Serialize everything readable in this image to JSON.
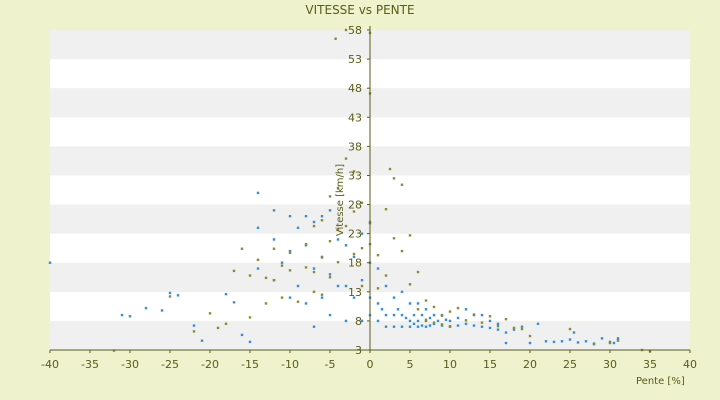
{
  "chart_data": {
    "type": "scatter",
    "title": "VITESSE vs PENTE",
    "xlabel": "Pente [%]",
    "ylabel": "Vitesse [km/h]",
    "xlim": [
      -40,
      40
    ],
    "ylim": [
      3,
      58
    ],
    "x_ticks": [
      -40,
      -35,
      -30,
      -25,
      -20,
      -15,
      -10,
      -5,
      0,
      5,
      10,
      15,
      20,
      25,
      30,
      35,
      40
    ],
    "y_ticks": [
      3,
      8,
      13,
      18,
      23,
      28,
      33,
      38,
      43,
      48,
      53,
      58
    ],
    "grid": "alternating horizontal bands",
    "legend": "none",
    "colors": {
      "band_gray": "#f0f0f0",
      "band_white": "#ffffff",
      "axis": "#5b5b16",
      "text": "#5b5b16",
      "series_blue": "#2f8fd8",
      "series_olive": "#8b8b2b"
    },
    "series": [
      {
        "color": "#2f8fd8",
        "points": [
          [
            -40,
            18
          ],
          [
            -31,
            9
          ],
          [
            -30,
            8.8
          ],
          [
            -28,
            10.2
          ],
          [
            -26,
            9.8
          ],
          [
            -25,
            12.8
          ],
          [
            -24,
            12.4
          ],
          [
            -22,
            7.2
          ],
          [
            -21,
            4.6
          ],
          [
            -18,
            12.6
          ],
          [
            -17,
            11.2
          ],
          [
            -16,
            5.6
          ],
          [
            -15,
            4.4
          ],
          [
            -14,
            30
          ],
          [
            -14,
            24
          ],
          [
            -14,
            17
          ],
          [
            -12,
            27
          ],
          [
            -12,
            22
          ],
          [
            -12,
            15
          ],
          [
            -11,
            18
          ],
          [
            -10,
            26
          ],
          [
            -10,
            20
          ],
          [
            -10,
            12
          ],
          [
            -9,
            24
          ],
          [
            -9,
            14
          ],
          [
            -8,
            26
          ],
          [
            -8,
            21
          ],
          [
            -8,
            11
          ],
          [
            -7,
            25
          ],
          [
            -7,
            17
          ],
          [
            -7,
            7
          ],
          [
            -6,
            26
          ],
          [
            -6,
            19
          ],
          [
            -6,
            12
          ],
          [
            -5,
            27
          ],
          [
            -5,
            16
          ],
          [
            -5,
            9
          ],
          [
            -4,
            22
          ],
          [
            -4,
            14
          ],
          [
            -3,
            21
          ],
          [
            -3,
            14
          ],
          [
            -3,
            8
          ],
          [
            -2,
            19
          ],
          [
            -2,
            12
          ],
          [
            -1,
            23
          ],
          [
            -1,
            15
          ],
          [
            -1,
            8
          ],
          [
            0,
            25
          ],
          [
            0,
            18
          ],
          [
            0,
            12
          ],
          [
            0,
            9
          ],
          [
            1,
            17
          ],
          [
            1,
            11
          ],
          [
            1,
            8
          ],
          [
            1.5,
            10
          ],
          [
            2,
            14
          ],
          [
            2,
            9
          ],
          [
            2,
            7
          ],
          [
            3,
            12
          ],
          [
            3,
            9
          ],
          [
            3,
            7
          ],
          [
            3.5,
            10
          ],
          [
            4,
            13
          ],
          [
            4,
            9
          ],
          [
            4,
            7
          ],
          [
            4.5,
            8.5
          ],
          [
            5,
            11
          ],
          [
            5,
            8
          ],
          [
            5,
            7
          ],
          [
            5.5,
            9
          ],
          [
            5.5,
            7.5
          ],
          [
            6,
            11
          ],
          [
            6,
            8
          ],
          [
            6,
            7
          ],
          [
            6.5,
            9
          ],
          [
            6.5,
            7.2
          ],
          [
            7,
            10
          ],
          [
            7,
            8
          ],
          [
            7,
            7
          ],
          [
            7.5,
            8.5
          ],
          [
            7.5,
            7.2
          ],
          [
            8,
            9
          ],
          [
            8,
            7.5
          ],
          [
            8.5,
            8
          ],
          [
            9,
            9
          ],
          [
            9,
            7.2
          ],
          [
            9.5,
            8.2
          ],
          [
            10,
            8
          ],
          [
            10,
            7
          ],
          [
            11,
            8.5
          ],
          [
            11,
            7.2
          ],
          [
            12,
            10
          ],
          [
            12,
            7.5
          ],
          [
            13,
            9
          ],
          [
            13,
            7.2
          ],
          [
            14,
            9
          ],
          [
            14,
            7
          ],
          [
            15,
            8
          ],
          [
            15,
            6.8
          ],
          [
            16,
            7.5
          ],
          [
            16,
            6.5
          ],
          [
            17,
            6
          ],
          [
            17,
            4.2
          ],
          [
            18,
            6.5
          ],
          [
            19,
            7
          ],
          [
            20,
            4.2
          ],
          [
            21,
            7.5
          ],
          [
            22,
            4.5
          ],
          [
            23,
            4.4
          ],
          [
            24,
            4.5
          ],
          [
            25,
            4.8
          ],
          [
            25.5,
            6
          ],
          [
            26,
            4.3
          ],
          [
            27,
            4.5
          ],
          [
            28,
            4.1
          ],
          [
            29,
            5
          ],
          [
            30,
            4.4
          ],
          [
            30.5,
            4.2
          ],
          [
            31,
            5
          ]
        ]
      },
      {
        "color": "#8b8b2b",
        "points": [
          [
            -32,
            2.9
          ],
          [
            -25,
            12.2
          ],
          [
            -22,
            6.2
          ],
          [
            -20,
            9.3
          ],
          [
            -19,
            6.8
          ],
          [
            -18,
            7.5
          ],
          [
            -17,
            16.6
          ],
          [
            -16,
            20.4
          ],
          [
            -15,
            15.8
          ],
          [
            -15,
            8.6
          ],
          [
            -14,
            18.5
          ],
          [
            -13,
            15.4
          ],
          [
            -13,
            11
          ],
          [
            -12,
            20.4
          ],
          [
            -12,
            15
          ],
          [
            -11,
            17.5
          ],
          [
            -11,
            12
          ],
          [
            -10,
            19.7
          ],
          [
            -10,
            16.7
          ],
          [
            -9,
            11.3
          ],
          [
            -8,
            21.2
          ],
          [
            -8,
            17.2
          ],
          [
            -7,
            24.3
          ],
          [
            -7,
            16.4
          ],
          [
            -7,
            13
          ],
          [
            -6,
            25.3
          ],
          [
            -6,
            18.9
          ],
          [
            -6,
            12.5
          ],
          [
            -5,
            29.4
          ],
          [
            -5,
            21.7
          ],
          [
            -5,
            15.5
          ],
          [
            -4,
            30.8
          ],
          [
            -4,
            23.7
          ],
          [
            -4,
            18.1
          ],
          [
            -3,
            35.9
          ],
          [
            -3,
            24.3
          ],
          [
            -2,
            33.7
          ],
          [
            -2,
            26.8
          ],
          [
            -2,
            19.5
          ],
          [
            -1,
            28.3
          ],
          [
            -1,
            20.5
          ],
          [
            -1,
            14
          ],
          [
            0,
            57.5
          ],
          [
            0,
            47.1
          ],
          [
            0,
            24.8
          ],
          [
            0,
            21.2
          ],
          [
            1,
            19.3
          ],
          [
            1,
            13.6
          ],
          [
            2,
            27.2
          ],
          [
            2,
            15.8
          ],
          [
            2.5,
            34.1
          ],
          [
            3,
            32.5
          ],
          [
            3,
            22.2
          ],
          [
            4,
            31.4
          ],
          [
            4,
            20
          ],
          [
            5,
            22.7
          ],
          [
            5,
            14.3
          ],
          [
            6,
            16.4
          ],
          [
            6,
            10
          ],
          [
            7,
            11.5
          ],
          [
            7,
            8.2
          ],
          [
            8,
            10.4
          ],
          [
            8,
            7.7
          ],
          [
            9,
            8.9
          ],
          [
            9,
            7.4
          ],
          [
            10,
            9.6
          ],
          [
            10,
            7.1
          ],
          [
            11,
            10.2
          ],
          [
            12,
            8.1
          ],
          [
            13,
            9.1
          ],
          [
            14,
            7.7
          ],
          [
            15,
            8.8
          ],
          [
            16,
            7.1
          ],
          [
            17,
            8.3
          ],
          [
            18,
            6.8
          ],
          [
            19,
            6.6
          ],
          [
            20,
            5.4
          ],
          [
            25,
            6.6
          ],
          [
            28,
            4
          ],
          [
            30,
            4.2
          ],
          [
            31,
            4.6
          ],
          [
            34,
            3
          ],
          [
            35,
            2.8
          ],
          [
            -3,
            58
          ],
          [
            -4.3,
            56.5
          ]
        ]
      }
    ]
  }
}
